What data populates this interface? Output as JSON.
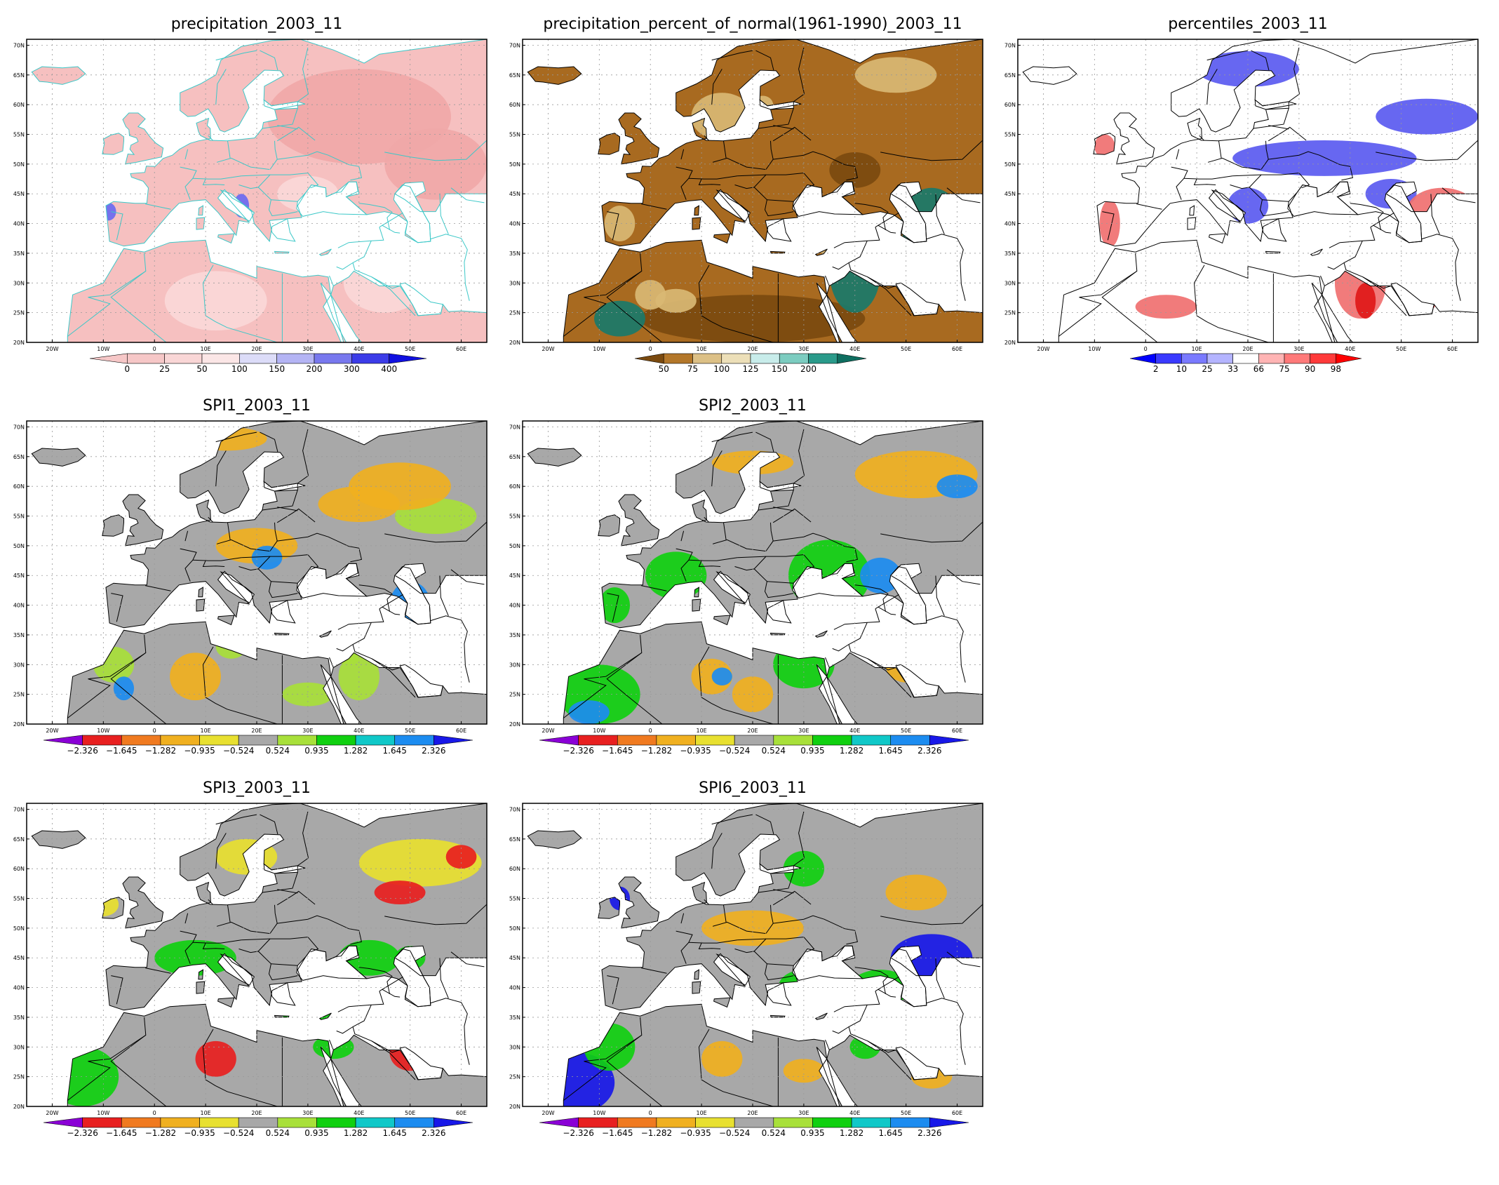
{
  "figure": {
    "background": "#ffffff"
  },
  "axes": {
    "lat_labels": [
      "70N",
      "65N",
      "60N",
      "55N",
      "50N",
      "45N",
      "40N",
      "35N",
      "30N",
      "25N",
      "20N"
    ],
    "lon_labels": [
      "20W",
      "10W",
      "0",
      "10E",
      "20E",
      "30E",
      "40E",
      "50E",
      "60E"
    ]
  },
  "legends": {
    "precip": {
      "labels": [
        "0",
        "25",
        "50",
        "100",
        "150",
        "200",
        "300",
        "400"
      ],
      "colors": [
        "#f6c7c7",
        "#f6c7c7",
        "#f9d6d6",
        "#fbe6e6",
        "#dcdcf8",
        "#b4b4f4",
        "#7878ee",
        "#3c3ce8",
        "#1010e0"
      ]
    },
    "pctnorm": {
      "labels": [
        "50",
        "75",
        "100",
        "125",
        "150",
        "200"
      ],
      "colors": [
        "#7b4a0f",
        "#b3772a",
        "#dcc086",
        "#ecdfb8",
        "#c8ecea",
        "#7cccc0",
        "#2a9a8a",
        "#0e6e60"
      ]
    },
    "percentile": {
      "labels": [
        "2",
        "10",
        "25",
        "33",
        "66",
        "75",
        "90",
        "98"
      ],
      "colors": [
        "#0000ff",
        "#3a3aff",
        "#7a7aff",
        "#b4b4ff",
        "#ffffff",
        "#ffb4b4",
        "#ff7a7a",
        "#ff3a3a",
        "#ff0000"
      ]
    },
    "spi": {
      "labels": [
        "-2.326",
        "-1.645",
        "-1.282",
        "-0.935",
        "-0.524",
        "0.524",
        "0.935",
        "1.282",
        "1.645",
        "2.326"
      ],
      "colors": [
        "#8a00d6",
        "#e82020",
        "#f07a20",
        "#f0b020",
        "#e8e030",
        "#a8a8a8",
        "#a8e03a",
        "#10d010",
        "#10c8c8",
        "#1c8cf0",
        "#1818e8"
      ]
    }
  },
  "panels": [
    {
      "id": "precipitation",
      "title": "precipitation_2003_11",
      "legend": "precip",
      "palette": {
        "sea": "#ffffff",
        "land": "#f6c0c0",
        "alt1": "#f0a8a8",
        "alt2": "#fad8d8",
        "high": "#6a6af0",
        "border": "#3cc8c8"
      }
    },
    {
      "id": "percent-normal",
      "title": "precipitation_percent_of_normal(1961-1990)_2003_11",
      "legend": "pctnorm",
      "palette": {
        "sea": "#ffffff",
        "land": "#a86a20",
        "alt1": "#7b4a0f",
        "alt2": "#d9b874",
        "high": "#1a7a6a",
        "border": "#000000"
      }
    },
    {
      "id": "percentiles",
      "title": "percentiles_2003_11",
      "legend": "percentile",
      "palette": {
        "sea": "#ffffff",
        "land": "#ffffff",
        "alt1": "#5a5af0",
        "alt2": "#f07070",
        "high": "#e01818",
        "border": "#000000"
      }
    },
    {
      "id": "spi1",
      "title": "SPI1_2003_11",
      "legend": "spi",
      "palette": {
        "sea": "#ffffff",
        "land": "#a8a8a8",
        "alt1": "#f0b020",
        "alt2": "#a8e03a",
        "high": "#1c8cf0",
        "border": "#000000"
      }
    },
    {
      "id": "spi2",
      "title": "SPI2_2003_11",
      "legend": "spi",
      "palette": {
        "sea": "#ffffff",
        "land": "#a8a8a8",
        "alt1": "#10d010",
        "alt2": "#f0b020",
        "high": "#1c8cf0",
        "border": "#000000"
      }
    },
    {
      "id": "spi3",
      "title": "SPI3_2003_11",
      "legend": "spi",
      "palette": {
        "sea": "#ffffff",
        "land": "#a8a8a8",
        "alt1": "#e8e030",
        "alt2": "#10d010",
        "high": "#e82020",
        "border": "#000000"
      }
    },
    {
      "id": "spi6",
      "title": "SPI6_2003_11",
      "legend": "spi",
      "palette": {
        "sea": "#ffffff",
        "land": "#a8a8a8",
        "alt1": "#f0b020",
        "alt2": "#10d010",
        "high": "#1818e8",
        "border": "#000000"
      }
    }
  ]
}
